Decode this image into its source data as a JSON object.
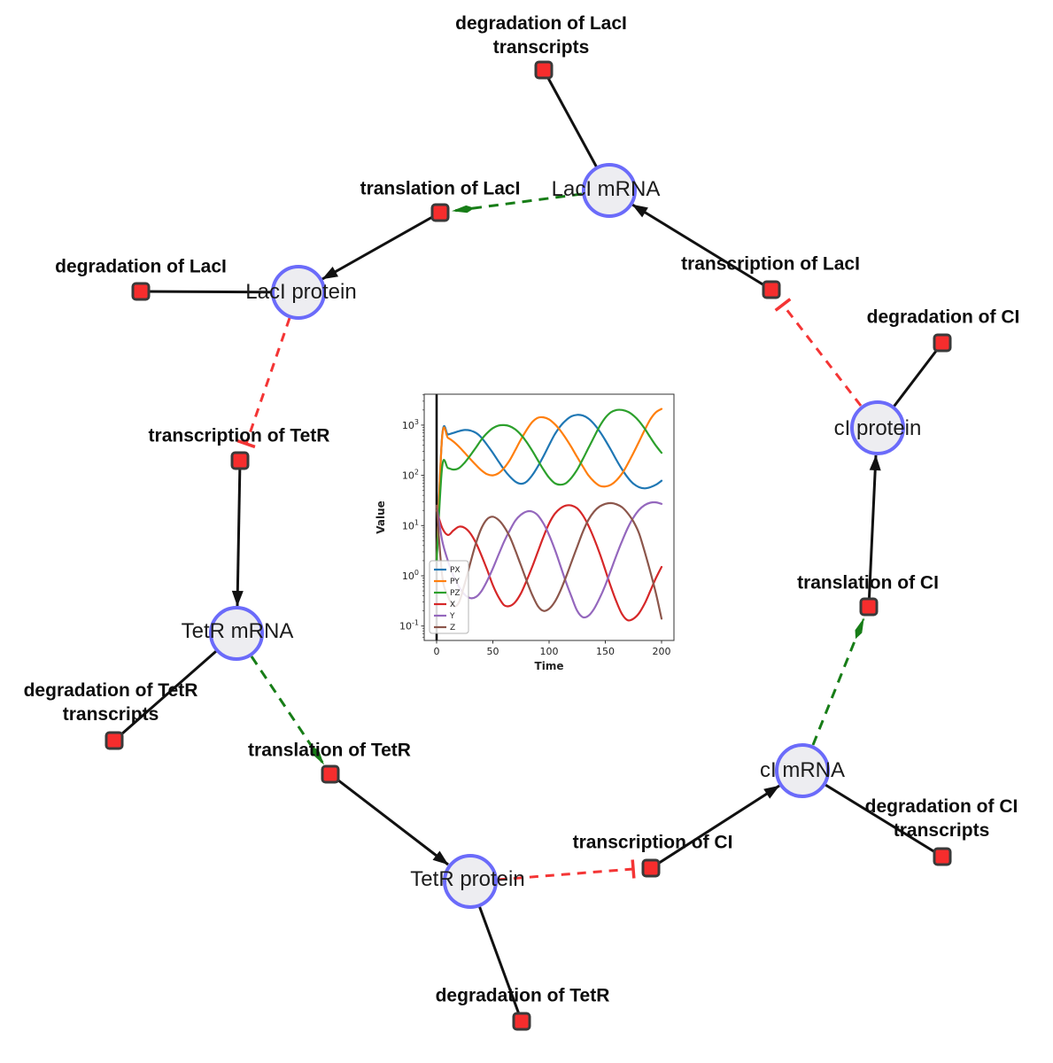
{
  "diagram": {
    "title": "repressilator gene regulatory network",
    "colors": {
      "species_fill": "#ededf1",
      "species_border": "#6b6bfa",
      "reaction_fill": "#f62d2d",
      "reaction_border": "#3a3a3a",
      "edge_black": "#111111",
      "edge_activation_green": "#177d17",
      "edge_inhibition_red": "#f43535"
    },
    "species": [
      {
        "id": "laci-mrna",
        "label": "LacI mRNA"
      },
      {
        "id": "laci-protein",
        "label": "LacI protein"
      },
      {
        "id": "tetr-mrna",
        "label": "TetR mRNA"
      },
      {
        "id": "tetr-protein",
        "label": "TetR protein"
      },
      {
        "id": "ci-mrna",
        "label": "cI mRNA"
      },
      {
        "id": "ci-protein",
        "label": "cI protein"
      }
    ],
    "reactions": [
      {
        "id": "degradation-of-laci-transcripts",
        "lines": [
          "degradation of LacI",
          "transcripts"
        ]
      },
      {
        "id": "translation-of-laci",
        "lines": [
          "translation of LacI"
        ]
      },
      {
        "id": "transcription-of-laci",
        "lines": [
          "transcription of LacI"
        ]
      },
      {
        "id": "degradation-of-laci",
        "lines": [
          "degradation of LacI"
        ]
      },
      {
        "id": "transcription-of-tetr",
        "lines": [
          "transcription of TetR"
        ]
      },
      {
        "id": "degradation-of-tetr-transcripts",
        "lines": [
          "degradation of TetR",
          "transcripts"
        ]
      },
      {
        "id": "translation-of-tetr",
        "lines": [
          "translation of TetR"
        ]
      },
      {
        "id": "degradation-of-tetr",
        "lines": [
          "degradation of TetR"
        ]
      },
      {
        "id": "transcription-of-ci",
        "lines": [
          "transcription of CI"
        ]
      },
      {
        "id": "degradation-of-ci-transcripts",
        "lines": [
          "degradation of CI",
          "transcripts"
        ]
      },
      {
        "id": "translation-of-ci",
        "lines": [
          "translation of CI"
        ]
      },
      {
        "id": "degradation-of-ci",
        "lines": [
          "degradation of CI"
        ]
      }
    ],
    "edges": [
      {
        "source": "LacI mRNA",
        "target": "degradation of LacI transcripts",
        "type": "consumption"
      },
      {
        "source": "LacI mRNA",
        "target": "translation of LacI",
        "type": "modifier-green-dashed-arrow"
      },
      {
        "source": "translation of LacI",
        "target": "LacI protein",
        "type": "production-arrow"
      },
      {
        "source": "transcription of LacI",
        "target": "LacI mRNA",
        "type": "production-arrow"
      },
      {
        "source": "LacI protein",
        "target": "degradation of LacI",
        "type": "consumption"
      },
      {
        "source": "LacI protein",
        "target": "transcription of TetR",
        "type": "inhibition-red-dashed-tee"
      },
      {
        "source": "transcription of TetR",
        "target": "TetR mRNA",
        "type": "production-arrow"
      },
      {
        "source": "TetR mRNA",
        "target": "degradation of TetR transcripts",
        "type": "consumption"
      },
      {
        "source": "TetR mRNA",
        "target": "translation of TetR",
        "type": "modifier-green-dashed-arrow"
      },
      {
        "source": "translation of TetR",
        "target": "TetR protein",
        "type": "production-arrow"
      },
      {
        "source": "TetR protein",
        "target": "degradation of TetR",
        "type": "consumption"
      },
      {
        "source": "TetR protein",
        "target": "transcription of CI",
        "type": "inhibition-red-dashed-tee"
      },
      {
        "source": "transcription of CI",
        "target": "cI mRNA",
        "type": "production-arrow"
      },
      {
        "source": "cI mRNA",
        "target": "degradation of CI transcripts",
        "type": "consumption"
      },
      {
        "source": "cI mRNA",
        "target": "translation of CI",
        "type": "modifier-green-dashed-arrow"
      },
      {
        "source": "translation of CI",
        "target": "cI protein",
        "type": "production-arrow"
      },
      {
        "source": "cI protein",
        "target": "degradation of CI",
        "type": "consumption"
      },
      {
        "source": "cI protein",
        "target": "transcription of LacI",
        "type": "inhibition-red-dashed-tee"
      }
    ]
  },
  "chart_data": {
    "type": "line",
    "title": "",
    "xlabel": "Time",
    "ylabel": "Value",
    "y_scale": "log",
    "x_ticks": [
      0,
      50,
      100,
      150,
      200
    ],
    "y_tick_exponents": [
      3,
      2,
      1,
      0,
      -1
    ],
    "xlim": [
      -11,
      211
    ],
    "ylim_log10": [
      -1.29,
      3.62
    ],
    "grid": false,
    "legend_position": "lower left",
    "vline_x": 0,
    "x": [
      0,
      5,
      10,
      15,
      20,
      25,
      30,
      35,
      40,
      45,
      50,
      55,
      60,
      65,
      70,
      75,
      80,
      85,
      90,
      95,
      100,
      105,
      110,
      115,
      120,
      125,
      130,
      135,
      140,
      145,
      150,
      155,
      160,
      165,
      170,
      175,
      180,
      185,
      190,
      195,
      200
    ],
    "series": [
      {
        "name": "PX",
        "color": "#1f77b4",
        "values": [
          2,
          620,
          650,
          700,
          760,
          800,
          780,
          700,
          560,
          400,
          280,
          190,
          130,
          95,
          75,
          68,
          75,
          100,
          150,
          240,
          400,
          650,
          950,
          1250,
          1500,
          1600,
          1550,
          1350,
          1050,
          750,
          500,
          320,
          200,
          130,
          90,
          68,
          58,
          55,
          58,
          65,
          78
        ]
      },
      {
        "name": "PY",
        "color": "#ff7f0e",
        "values": [
          2,
          600,
          560,
          470,
          370,
          280,
          210,
          160,
          125,
          105,
          100,
          110,
          140,
          200,
          320,
          520,
          800,
          1150,
          1400,
          1430,
          1300,
          1050,
          780,
          540,
          360,
          230,
          150,
          100,
          75,
          62,
          60,
          65,
          80,
          110,
          170,
          280,
          470,
          800,
          1300,
          1800,
          2100
        ]
      },
      {
        "name": "PZ",
        "color": "#2ca02c",
        "values": [
          2,
          150,
          140,
          130,
          140,
          180,
          250,
          360,
          520,
          700,
          870,
          980,
          1000,
          950,
          820,
          640,
          460,
          310,
          200,
          130,
          90,
          70,
          65,
          70,
          90,
          130,
          210,
          350,
          580,
          950,
          1400,
          1800,
          2000,
          2000,
          1850,
          1550,
          1200,
          850,
          570,
          390,
          280
        ]
      },
      {
        "name": "X",
        "color": "#d62728",
        "values": [
          20,
          9,
          6.5,
          8,
          9.5,
          9,
          7,
          4.5,
          2.5,
          1.3,
          0.65,
          0.38,
          0.26,
          0.25,
          0.3,
          0.45,
          0.8,
          1.5,
          3,
          6,
          11,
          17,
          22,
          25,
          25,
          22,
          16,
          10,
          5.5,
          2.8,
          1.3,
          0.6,
          0.3,
          0.17,
          0.13,
          0.14,
          0.18,
          0.28,
          0.5,
          0.9,
          1.5
        ]
      },
      {
        "name": "Y",
        "color": "#9467bd",
        "values": [
          25,
          5,
          2,
          1,
          0.6,
          0.42,
          0.36,
          0.38,
          0.5,
          0.8,
          1.4,
          2.6,
          4.8,
          8,
          12.5,
          16.5,
          19,
          19,
          16,
          11,
          6.5,
          3.4,
          1.6,
          0.75,
          0.38,
          0.2,
          0.15,
          0.16,
          0.22,
          0.36,
          0.65,
          1.3,
          2.6,
          5,
          9,
          14.5,
          20.5,
          25.5,
          28.5,
          29,
          27
        ]
      },
      {
        "name": "Z",
        "color": "#8c564b",
        "values": [
          25,
          1,
          0.4,
          0.25,
          0.3,
          0.7,
          1.8,
          4.5,
          9,
          13.5,
          15,
          13,
          9.5,
          6,
          3.2,
          1.6,
          0.8,
          0.42,
          0.25,
          0.2,
          0.22,
          0.3,
          0.5,
          0.95,
          1.9,
          3.8,
          7.5,
          13,
          19,
          24,
          27,
          28,
          26.5,
          23,
          17.5,
          12,
          7,
          3,
          1.2,
          0.45,
          0.14
        ]
      }
    ]
  }
}
